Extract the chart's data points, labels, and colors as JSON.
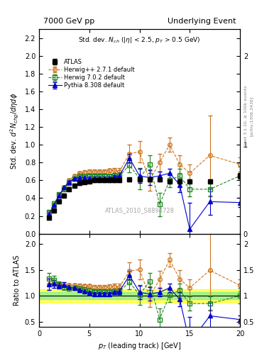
{
  "title_left": "7000 GeV pp",
  "title_right": "Underlying Event",
  "watermark": "ATLAS_2010_S8894728",
  "ylabel_main": "Std. dev. $d^2N_{chg}/d\\eta d\\phi$",
  "ylabel_ratio": "Ratio to ATLAS",
  "xlabel": "$p_T$ (leading track) [GeV]",
  "atlas_x": [
    1.0,
    1.5,
    2.0,
    2.5,
    3.0,
    3.5,
    4.0,
    4.5,
    5.0,
    5.5,
    6.0,
    6.5,
    7.0,
    7.5,
    8.0,
    9.0,
    10.0,
    11.0,
    12.0,
    13.0,
    14.0,
    15.0,
    17.0,
    20.0
  ],
  "atlas_y": [
    0.18,
    0.26,
    0.36,
    0.43,
    0.5,
    0.54,
    0.57,
    0.58,
    0.59,
    0.6,
    0.6,
    0.6,
    0.6,
    0.6,
    0.6,
    0.61,
    0.61,
    0.61,
    0.61,
    0.59,
    0.59,
    0.59,
    0.59,
    0.65
  ],
  "atlas_yerr": [
    0.02,
    0.02,
    0.02,
    0.02,
    0.02,
    0.02,
    0.02,
    0.02,
    0.02,
    0.02,
    0.02,
    0.02,
    0.02,
    0.02,
    0.02,
    0.02,
    0.02,
    0.02,
    0.02,
    0.02,
    0.02,
    0.02,
    0.02,
    0.03
  ],
  "herwig1_x": [
    1.0,
    1.5,
    2.0,
    2.5,
    3.0,
    3.5,
    4.0,
    4.5,
    5.0,
    5.5,
    6.0,
    6.5,
    7.0,
    7.5,
    8.0,
    9.0,
    10.0,
    11.0,
    12.0,
    13.0,
    14.0,
    15.0,
    17.0,
    20.0
  ],
  "herwig1_y": [
    0.22,
    0.32,
    0.43,
    0.52,
    0.6,
    0.65,
    0.68,
    0.69,
    0.7,
    0.7,
    0.7,
    0.7,
    0.71,
    0.71,
    0.7,
    0.9,
    0.92,
    0.6,
    0.8,
    1.0,
    0.78,
    0.68,
    0.88,
    0.78
  ],
  "herwig1_yerr": [
    0.02,
    0.02,
    0.02,
    0.02,
    0.02,
    0.02,
    0.02,
    0.02,
    0.02,
    0.02,
    0.02,
    0.02,
    0.02,
    0.03,
    0.04,
    0.1,
    0.12,
    0.12,
    0.1,
    0.08,
    0.1,
    0.1,
    0.45,
    0.08
  ],
  "herwig2_x": [
    1.0,
    1.5,
    2.0,
    2.5,
    3.0,
    3.5,
    4.0,
    4.5,
    5.0,
    5.5,
    6.0,
    6.5,
    7.0,
    7.5,
    8.0,
    9.0,
    10.0,
    11.0,
    12.0,
    13.0,
    14.0,
    15.0,
    17.0,
    20.0
  ],
  "herwig2_y": [
    0.24,
    0.34,
    0.44,
    0.5,
    0.57,
    0.62,
    0.65,
    0.65,
    0.65,
    0.65,
    0.65,
    0.65,
    0.65,
    0.65,
    0.65,
    0.77,
    0.62,
    0.78,
    0.33,
    0.6,
    0.65,
    0.5,
    0.5,
    0.65
  ],
  "herwig2_yerr": [
    0.02,
    0.02,
    0.02,
    0.02,
    0.02,
    0.02,
    0.02,
    0.02,
    0.02,
    0.02,
    0.02,
    0.02,
    0.02,
    0.03,
    0.04,
    0.08,
    0.12,
    0.1,
    0.13,
    0.08,
    0.08,
    0.08,
    0.08,
    0.1
  ],
  "pythia_x": [
    1.0,
    1.5,
    2.0,
    2.5,
    3.0,
    3.5,
    4.0,
    4.5,
    5.0,
    5.5,
    6.0,
    6.5,
    7.0,
    7.5,
    8.0,
    9.0,
    10.0,
    11.0,
    12.0,
    13.0,
    14.0,
    15.0,
    17.0,
    20.0
  ],
  "pythia_y": [
    0.22,
    0.32,
    0.43,
    0.52,
    0.58,
    0.62,
    0.63,
    0.63,
    0.62,
    0.62,
    0.62,
    0.62,
    0.62,
    0.64,
    0.65,
    0.85,
    0.65,
    0.63,
    0.65,
    0.68,
    0.55,
    0.05,
    0.36,
    0.35
  ],
  "pythia_yerr": [
    0.02,
    0.02,
    0.02,
    0.02,
    0.02,
    0.02,
    0.02,
    0.02,
    0.02,
    0.02,
    0.02,
    0.02,
    0.02,
    0.02,
    0.03,
    0.05,
    0.08,
    0.08,
    0.05,
    0.05,
    0.08,
    0.3,
    0.15,
    0.05
  ],
  "atlas_color": "#000000",
  "herwig1_color": "#cc7722",
  "herwig2_color": "#228822",
  "pythia_color": "#0000cc",
  "band_green": [
    0.93,
    1.07
  ],
  "band_yellow": [
    0.87,
    1.13
  ],
  "xlim": [
    0,
    20
  ],
  "ylim_main": [
    0,
    2.3
  ],
  "ylim_ratio": [
    0.4,
    2.2
  ],
  "xticks": [
    0,
    5,
    10,
    15,
    20
  ],
  "yticks_main": [
    0.0,
    0.2,
    0.4,
    0.6,
    0.8,
    1.0,
    1.2,
    1.4,
    1.6,
    1.8,
    2.0,
    2.2
  ],
  "yticks_ratio": [
    0.5,
    1.0,
    1.5,
    2.0
  ]
}
